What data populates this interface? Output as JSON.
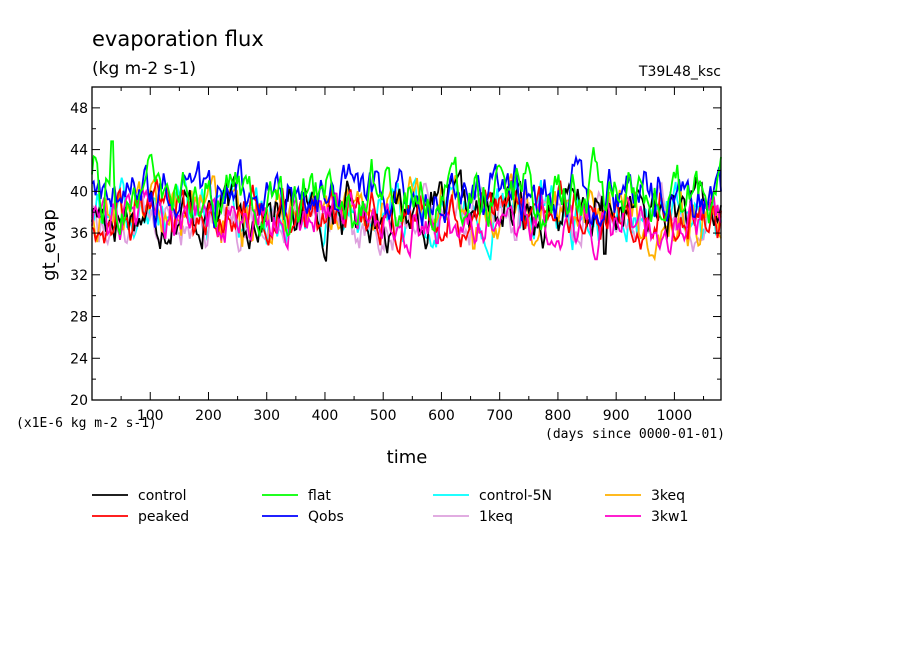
{
  "chart_data": {
    "type": "line",
    "title": "evaporation flux",
    "subtitle": "(kg m-2 s-1)",
    "run_label": "T39L48_ksc",
    "xlabel": "time",
    "xunit": "(days since 0000-01-01)",
    "ylabel": "gt_evap",
    "yunit": "(x1E-6 kg m-2 s-1)",
    "xlim": [
      0,
      1080
    ],
    "ylim": [
      20,
      50
    ],
    "xticks": [
      100,
      200,
      300,
      400,
      500,
      600,
      700,
      800,
      900,
      1000
    ],
    "yticks": [
      20,
      24,
      28,
      32,
      36,
      40,
      44,
      48
    ],
    "grid": false,
    "legend_position": "bottom",
    "series": [
      {
        "name": "control",
        "color": "#000000",
        "mean": 38.0,
        "amp": 2.2,
        "dip": [
          880,
          34.0
        ]
      },
      {
        "name": "peaked",
        "color": "#ff0000",
        "mean": 37.8,
        "amp": 2.0,
        "dip": null
      },
      {
        "name": "flat",
        "color": "#00ff00",
        "mean": 39.8,
        "amp": 2.4,
        "dip": null,
        "peak": [
          35,
          44.8
        ]
      },
      {
        "name": "Qobs",
        "color": "#0000ff",
        "mean": 39.5,
        "amp": 2.3,
        "dip": null
      },
      {
        "name": "control-5N",
        "color": "#00ffff",
        "mean": 37.6,
        "amp": 2.1,
        "dip": null
      },
      {
        "name": "1keq",
        "color": "#dda0dd",
        "mean": 37.4,
        "amp": 2.0,
        "dip": null
      },
      {
        "name": "3keq",
        "color": "#ffb000",
        "mean": 37.8,
        "amp": 2.2,
        "dip": [
          655,
          34.5
        ]
      },
      {
        "name": "3kw1",
        "color": "#ff00c8",
        "mean": 37.3,
        "amp": 1.9,
        "dip": null
      }
    ]
  }
}
